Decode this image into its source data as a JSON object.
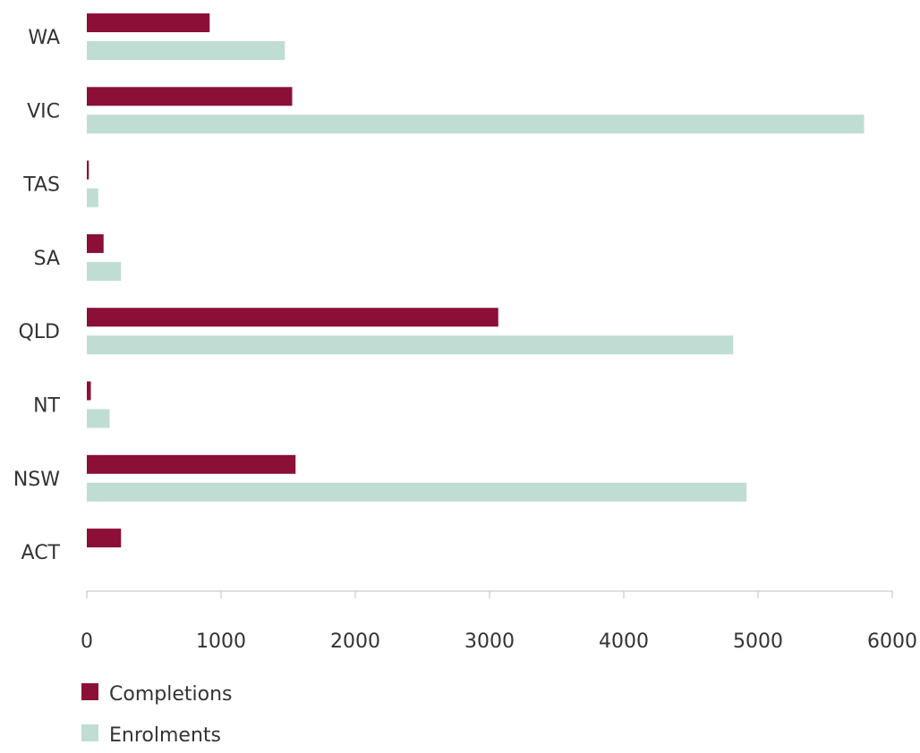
{
  "chart_data": {
    "type": "bar",
    "orientation": "horizontal",
    "categories": [
      "WA",
      "VIC",
      "TAS",
      "SA",
      "QLD",
      "NT",
      "NSW",
      "ACT"
    ],
    "series": [
      {
        "name": "Completions",
        "color": "#8B0F36",
        "values": [
          915,
          1530,
          15,
          125,
          3065,
          30,
          1555,
          255
        ]
      },
      {
        "name": "Enrolments",
        "color": "#BFDDD3",
        "values": [
          1475,
          5790,
          85,
          255,
          4815,
          170,
          4915,
          0
        ]
      }
    ],
    "xlim": [
      0,
      6000
    ],
    "xticks": [
      "0",
      "1000",
      "2000",
      "3000",
      "4000",
      "5000",
      "6000"
    ],
    "grid": false,
    "legend": "bottom-left"
  }
}
